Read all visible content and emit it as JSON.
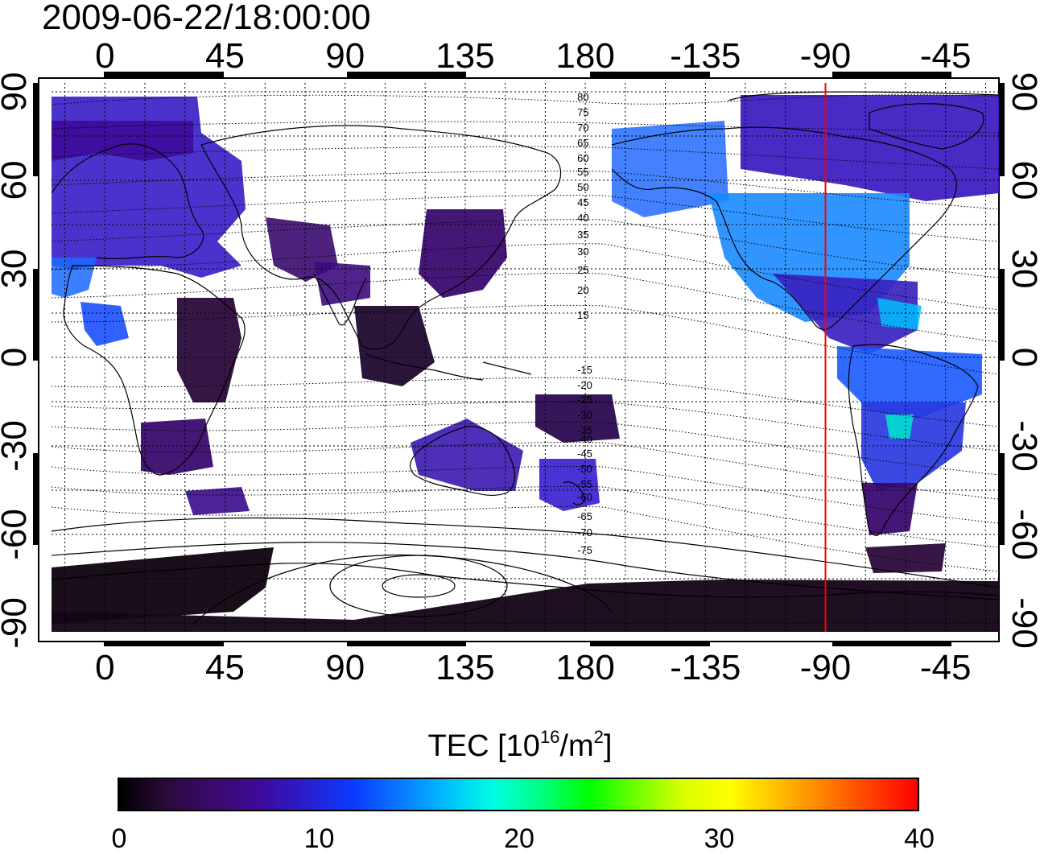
{
  "timestamp": "2009-06-22/18:00:00",
  "map": {
    "longitude_ticks_top": [
      "0",
      "45",
      "90",
      "135",
      "180",
      "-135",
      "-90",
      "-45"
    ],
    "longitude_ticks_bottom": [
      "0",
      "45",
      "90",
      "135",
      "180",
      "-135",
      "-90",
      "-45"
    ],
    "latitude_ticks_left": [
      "90",
      "60",
      "30",
      "0",
      "-30",
      "-60",
      "-90"
    ],
    "latitude_ticks_right": [
      "90",
      "60",
      "30",
      "0",
      "-30",
      "-60",
      "-90"
    ],
    "tick_values_lon": [
      0,
      45,
      90,
      135,
      180,
      225,
      270,
      315
    ],
    "tick_values_lat": [
      90,
      60,
      30,
      0,
      -30,
      -60,
      -90
    ],
    "lon_range": [
      -20,
      335
    ],
    "lat_range": [
      -93,
      93
    ],
    "grid_step_deg": 15,
    "grid": true,
    "marker_longitude": -90,
    "marker_color": "#ff0000",
    "contour_labels_north": [
      "80",
      "75",
      "70",
      "65",
      "60",
      "55",
      "50",
      "45",
      "40",
      "35",
      "30",
      "25",
      "20",
      "15"
    ],
    "contour_labels_south": [
      "-15",
      "-20",
      "-25",
      "-30",
      "-35",
      "-40",
      "-45",
      "-50",
      "-55",
      "-60",
      "-65",
      "-70",
      "-75"
    ]
  },
  "colorbar": {
    "title_prefix": "TEC  [10",
    "title_exp1": "16",
    "title_mid": "/m",
    "title_exp2": "2",
    "title_suffix": "]",
    "ticks": [
      "0",
      "10",
      "20",
      "30",
      "40"
    ],
    "tick_values": [
      0,
      10,
      20,
      30,
      40
    ],
    "range": [
      0,
      40
    ],
    "colors": [
      "#000000",
      "#2a0a3a",
      "#3a0a6e",
      "#3d0a9a",
      "#2a1fd0",
      "#0a3aff",
      "#0a7aff",
      "#00c0ff",
      "#00ffe0",
      "#00ff80",
      "#00ff00",
      "#70ff00",
      "#d8ff00",
      "#ffff00",
      "#ffc000",
      "#ff8000",
      "#ff4000",
      "#ff0000"
    ]
  }
}
